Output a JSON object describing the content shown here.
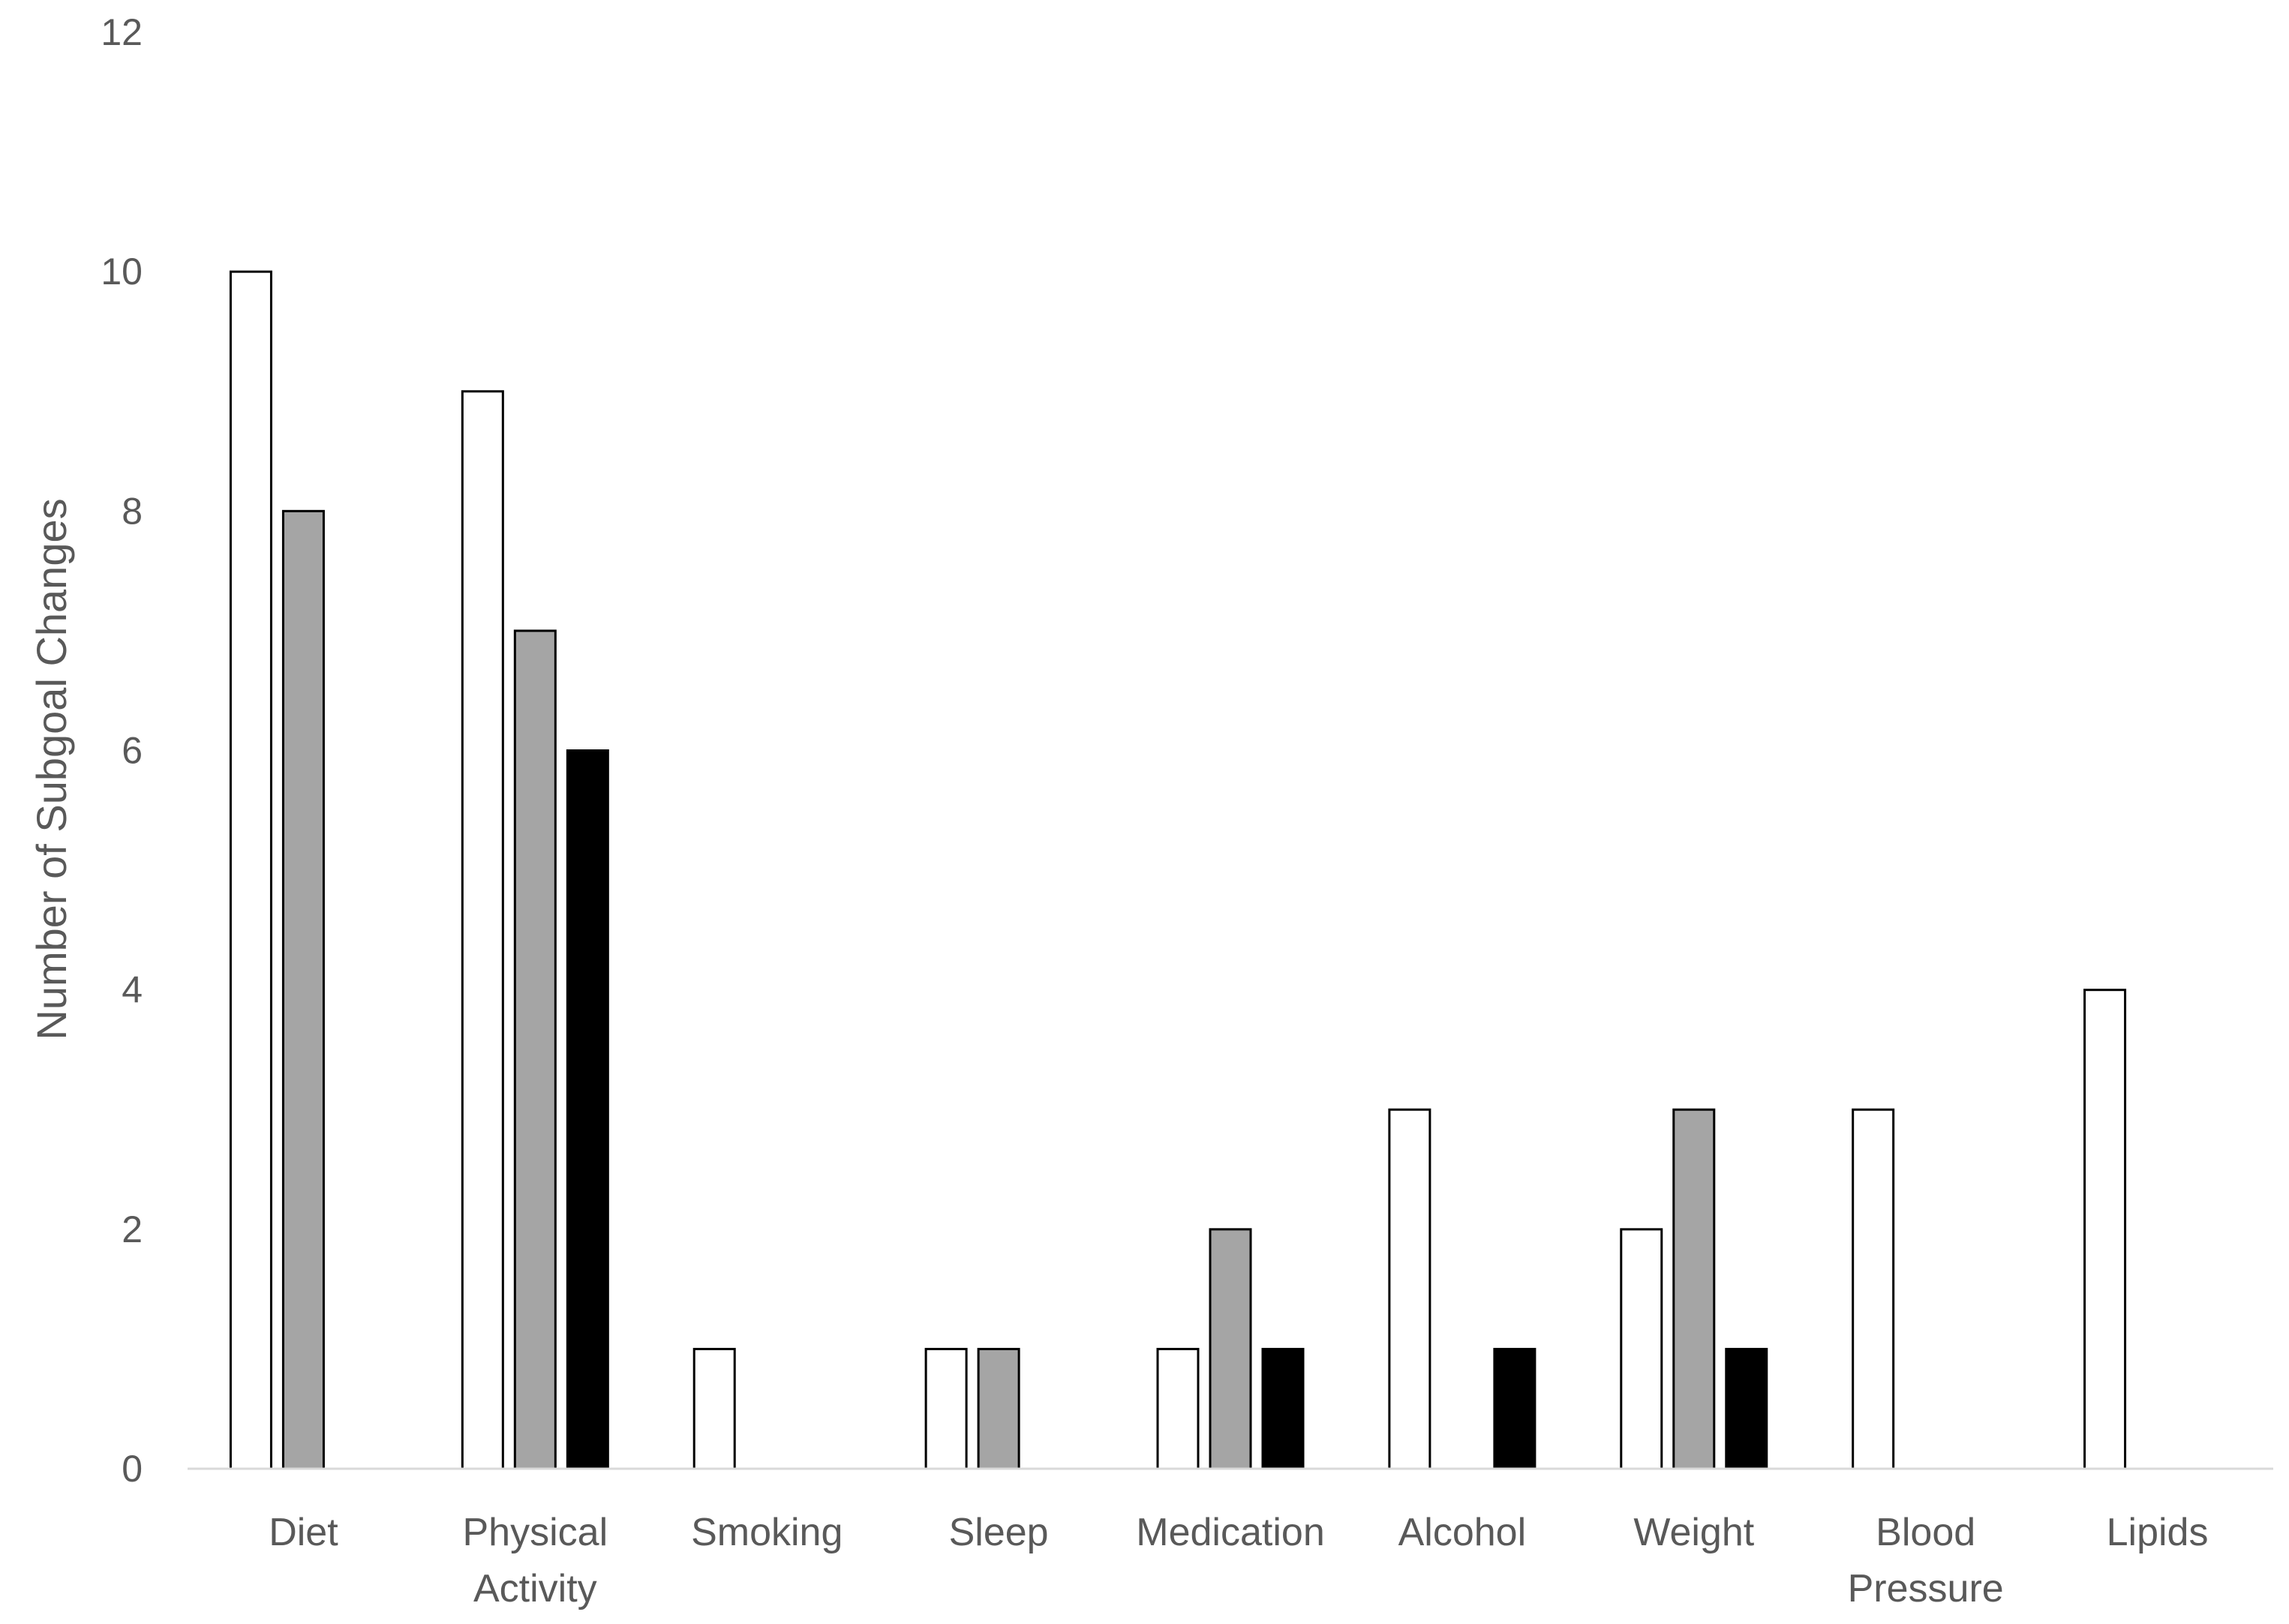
{
  "chart_data": {
    "type": "bar",
    "title": "",
    "xlabel": "",
    "ylabel": "Number of Subgoal Changes",
    "ylim": [
      0,
      12
    ],
    "yticks": [
      "0",
      "2",
      "4",
      "6",
      "8",
      "10",
      "12"
    ],
    "grid": false,
    "legend": "none",
    "categories": [
      [
        "Diet"
      ],
      [
        "Physical",
        "Activity"
      ],
      [
        "Smoking"
      ],
      [
        "Sleep"
      ],
      [
        "Medication"
      ],
      [
        "Alcohol"
      ],
      [
        "Weight"
      ],
      [
        "Blood",
        "Pressure"
      ],
      [
        "Lipids"
      ]
    ],
    "series": [
      {
        "color": "#ffffff",
        "values": [
          10,
          9,
          1,
          1,
          1,
          3,
          2,
          3,
          4
        ]
      },
      {
        "color": "#a5a5a5",
        "values": [
          8,
          7,
          0,
          1,
          2,
          0,
          3,
          0,
          0
        ]
      },
      {
        "color": "#000000",
        "values": [
          0,
          6,
          0,
          0,
          1,
          1,
          1,
          0,
          0
        ]
      }
    ],
    "axis_color": "#d9d9d9",
    "bar_outline_color": "#000000",
    "text_color": "#595959"
  }
}
